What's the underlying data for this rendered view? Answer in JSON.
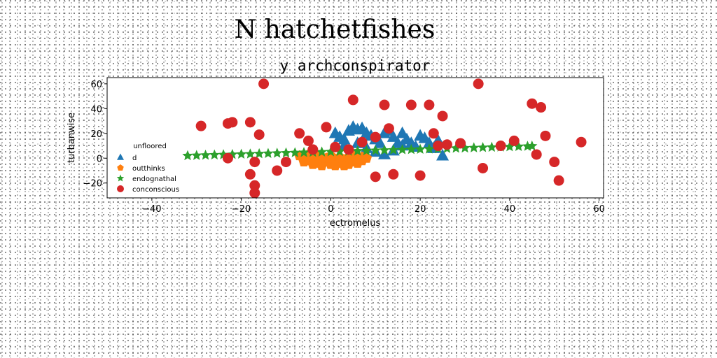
{
  "chart_data": {
    "type": "scatter",
    "title": "N hatchetfishes",
    "subtitle": "y archconspirator",
    "xlabel": "ectromelus",
    "ylabel": "turbanwise",
    "xlim": [
      -50,
      61
    ],
    "ylim": [
      -32,
      65
    ],
    "xticks": [
      -40,
      -20,
      0,
      20,
      40,
      60
    ],
    "yticks": [
      -20,
      0,
      20,
      40,
      60
    ],
    "grid": false,
    "legend": {
      "title": "unfloored",
      "placement": "center-left"
    },
    "series": [
      {
        "name": "d",
        "marker": "triangle",
        "color": "#1f77b4",
        "points": [
          [
            1,
            20
          ],
          [
            2,
            17
          ],
          [
            3,
            15
          ],
          [
            4,
            22
          ],
          [
            5,
            25
          ],
          [
            6,
            23
          ],
          [
            7,
            24
          ],
          [
            8,
            20
          ],
          [
            9,
            18
          ],
          [
            10,
            15
          ],
          [
            11,
            12
          ],
          [
            12,
            20
          ],
          [
            13,
            22
          ],
          [
            14,
            17
          ],
          [
            15,
            12
          ],
          [
            16,
            20
          ],
          [
            17,
            15
          ],
          [
            18,
            12
          ],
          [
            20,
            18
          ],
          [
            21,
            16
          ],
          [
            22,
            12
          ],
          [
            24,
            14
          ],
          [
            25,
            2
          ],
          [
            10,
            5
          ],
          [
            12,
            3
          ],
          [
            3,
            10
          ],
          [
            6,
            12
          ],
          [
            8,
            8
          ],
          [
            14,
            6
          ],
          [
            16,
            10
          ],
          [
            19,
            9
          ],
          [
            23,
            8
          ]
        ]
      },
      {
        "name": "outthinks",
        "marker": "pentagon",
        "color": "#ff7f0e",
        "points": [
          [
            -7,
            2
          ],
          [
            -6,
            0
          ],
          [
            -5,
            -2
          ],
          [
            -4,
            1
          ],
          [
            -3,
            -4
          ],
          [
            -2,
            -6
          ],
          [
            -1,
            -3
          ],
          [
            0,
            -5
          ],
          [
            1,
            -1
          ],
          [
            2,
            -4
          ],
          [
            3,
            -2
          ],
          [
            4,
            -5
          ],
          [
            5,
            -3
          ],
          [
            6,
            0
          ],
          [
            7,
            -2
          ],
          [
            8,
            0
          ],
          [
            -5,
            3
          ],
          [
            -3,
            2
          ],
          [
            -1,
            0
          ],
          [
            2,
            1
          ],
          [
            4,
            1
          ],
          [
            6,
            -4
          ],
          [
            -4,
            -5
          ],
          [
            0,
            2
          ],
          [
            3,
            -6
          ],
          [
            -2,
            1
          ],
          [
            1,
            -6
          ],
          [
            5,
            2
          ],
          [
            7,
            1
          ],
          [
            -6,
            -3
          ]
        ]
      },
      {
        "name": "endognathal",
        "marker": "star",
        "color": "#2ca02c",
        "points": [
          [
            -32,
            2
          ],
          [
            -30,
            2.2
          ],
          [
            -28,
            2.4
          ],
          [
            -26,
            2.6
          ],
          [
            -24,
            2.8
          ],
          [
            -22,
            3
          ],
          [
            -20,
            3.2
          ],
          [
            -18,
            3.4
          ],
          [
            -16,
            3.6
          ],
          [
            -14,
            3.8
          ],
          [
            -12,
            4
          ],
          [
            -10,
            4.2
          ],
          [
            -8,
            4.4
          ],
          [
            -6,
            4.6
          ],
          [
            -4,
            4.8
          ],
          [
            -2,
            5
          ],
          [
            0,
            5.2
          ],
          [
            2,
            5.4
          ],
          [
            4,
            5.6
          ],
          [
            6,
            5.8
          ],
          [
            8,
            6
          ],
          [
            10,
            6.2
          ],
          [
            12,
            6.4
          ],
          [
            14,
            6.6
          ],
          [
            16,
            6.8
          ],
          [
            18,
            7
          ],
          [
            20,
            7.2
          ],
          [
            22,
            7.4
          ],
          [
            24,
            7.6
          ],
          [
            26,
            7.8
          ],
          [
            28,
            8
          ],
          [
            30,
            8.2
          ],
          [
            32,
            8.4
          ],
          [
            34,
            8.6
          ],
          [
            36,
            8.8
          ],
          [
            38,
            9
          ],
          [
            40,
            9.2
          ],
          [
            42,
            9.4
          ],
          [
            44,
            9.6
          ],
          [
            45,
            9.8
          ]
        ]
      },
      {
        "name": "conconscious",
        "marker": "circle",
        "color": "#d62728",
        "points": [
          [
            -29,
            26
          ],
          [
            -23,
            28
          ],
          [
            -22,
            29
          ],
          [
            -23,
            0
          ],
          [
            -18,
            29
          ],
          [
            -16,
            19
          ],
          [
            -15,
            60
          ],
          [
            -17,
            -3
          ],
          [
            -18,
            -13
          ],
          [
            -17,
            -22
          ],
          [
            -17,
            -28
          ],
          [
            -12,
            -10
          ],
          [
            -10,
            -3
          ],
          [
            -7,
            20
          ],
          [
            -5,
            14
          ],
          [
            -4,
            7
          ],
          [
            -1,
            25
          ],
          [
            1,
            9
          ],
          [
            4,
            7
          ],
          [
            5,
            47
          ],
          [
            7,
            13
          ],
          [
            10,
            17
          ],
          [
            10,
            -15
          ],
          [
            12,
            43
          ],
          [
            13,
            24
          ],
          [
            14,
            -13
          ],
          [
            18,
            43
          ],
          [
            20,
            -14
          ],
          [
            22,
            43
          ],
          [
            23,
            20
          ],
          [
            24,
            10
          ],
          [
            25,
            34
          ],
          [
            26,
            11
          ],
          [
            29,
            12
          ],
          [
            33,
            60
          ],
          [
            34,
            -8
          ],
          [
            38,
            10
          ],
          [
            41,
            14
          ],
          [
            45,
            44
          ],
          [
            46,
            3
          ],
          [
            47,
            41
          ],
          [
            48,
            18
          ],
          [
            50,
            -3
          ],
          [
            51,
            -18
          ],
          [
            56,
            13
          ]
        ]
      }
    ]
  }
}
